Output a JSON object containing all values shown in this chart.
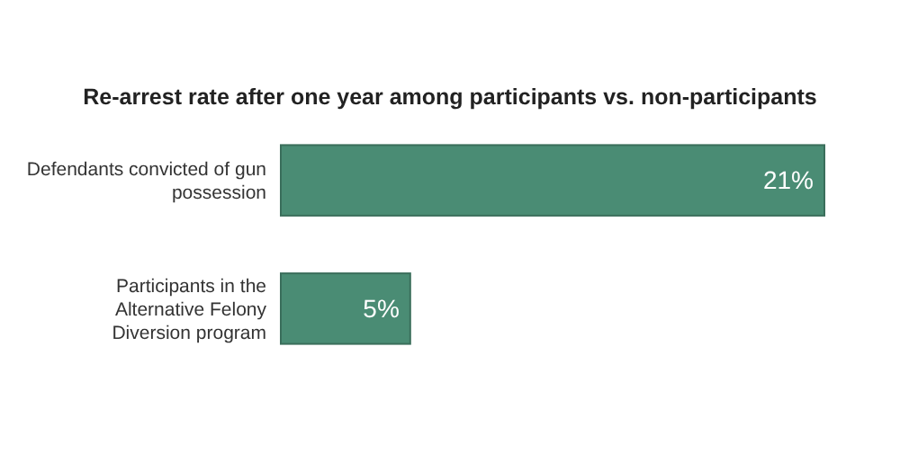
{
  "chart_data": {
    "type": "bar",
    "orientation": "horizontal",
    "title": "Re-arrest rate after one year among participants vs. non-participants",
    "categories": [
      "Defendants convicted of gun possession",
      "Participants in the Alternative Felony Diversion program"
    ],
    "values": [
      21,
      5
    ],
    "color": "#4a8c74",
    "data_labels": true,
    "value_labels": [
      "21%",
      "5%"
    ]
  }
}
